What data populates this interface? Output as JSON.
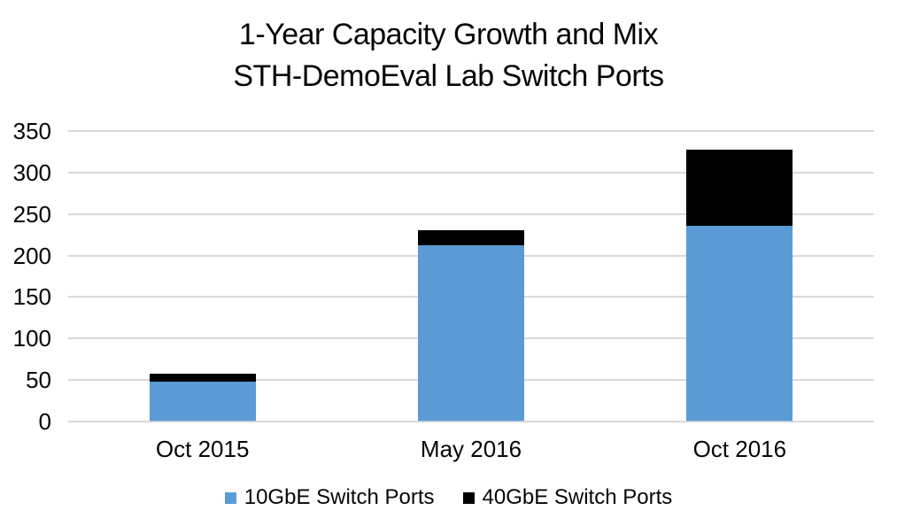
{
  "title": {
    "line1": "1-Year Capacity Growth and Mix",
    "line2": "STH-DemoEval Lab Switch Ports"
  },
  "chart_data": {
    "type": "bar",
    "stacked": true,
    "title": "1-Year Capacity Growth and Mix — STH-DemoEval Lab Switch Ports",
    "categories": [
      "Oct 2015",
      "May 2016",
      "Oct 2016"
    ],
    "series": [
      {
        "name": "10GbE Switch Ports",
        "color": "#5B9BD5",
        "values": [
          48,
          212,
          236
        ]
      },
      {
        "name": "40GbE Switch Ports",
        "color": "#000000",
        "values": [
          10,
          18,
          92
        ]
      }
    ],
    "totals": [
      58,
      230,
      328
    ],
    "xlabel": "",
    "ylabel": "",
    "ylim": [
      0,
      350
    ],
    "yticks": [
      0,
      50,
      100,
      150,
      200,
      250,
      300,
      350
    ],
    "grid": true,
    "gridline_color": "#D9D9D9",
    "background": "#FFFFFF",
    "legend_position": "bottom"
  }
}
